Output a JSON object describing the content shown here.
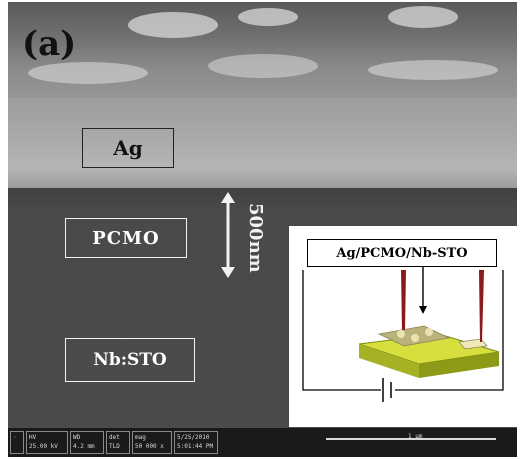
{
  "figure": {
    "panel_label": "(a)",
    "layers": {
      "top": "Ag",
      "middle": "PCMO",
      "bottom": "Nb:STO"
    },
    "thickness_marker": "500nm",
    "inset": {
      "title": "Ag/PCMO/Nb-STO"
    },
    "sem_databar": {
      "hv": {
        "label": "HV",
        "value": "25.00 kV"
      },
      "wd": {
        "label": "WD",
        "value": "4.2 mm"
      },
      "det": {
        "label": "det",
        "value": "TLD"
      },
      "mag": {
        "label": "mag",
        "value": "50 000 x"
      },
      "date": {
        "label": "5/25/2010",
        "value": "5:01:44 PM"
      },
      "scale": "1 μm"
    },
    "colors": {
      "ag_layer": "#a8a8a8",
      "pcmo_layer": "#4a4a4a",
      "inset_substrate": "#c8d23a",
      "probe": "#8b1a1a"
    }
  }
}
